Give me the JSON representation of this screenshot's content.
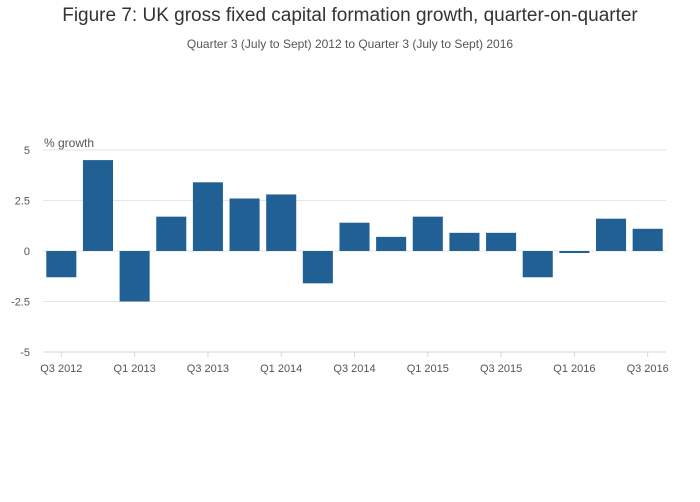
{
  "chart_data": {
    "type": "bar",
    "title": "Figure 7: UK gross fixed capital formation growth, quarter-on-quarter",
    "subtitle": "Quarter 3 (July to Sept) 2012 to Quarter 3 (July to Sept) 2016",
    "ylabel": "% growth",
    "xlabel": "",
    "ylim": [
      -5,
      5
    ],
    "yticks": [
      5,
      2.5,
      0,
      -2.5,
      -5
    ],
    "ytick_labels": [
      "5",
      "2.5",
      "0",
      "-2.5",
      "-5"
    ],
    "categories": [
      "Q3 2012",
      "Q4 2012",
      "Q1 2013",
      "Q2 2013",
      "Q3 2013",
      "Q4 2013",
      "Q1 2014",
      "Q2 2014",
      "Q3 2014",
      "Q4 2014",
      "Q1 2015",
      "Q2 2015",
      "Q3 2015",
      "Q4 2015",
      "Q1 2016",
      "Q2 2016",
      "Q3 2016"
    ],
    "xtick_labels": [
      "Q3 2012",
      "Q1 2013",
      "Q3 2013",
      "Q1 2014",
      "Q3 2014",
      "Q1 2015",
      "Q3 2015",
      "Q1 2016",
      "Q3 2016"
    ],
    "values": [
      -1.3,
      4.5,
      -2.5,
      1.7,
      3.4,
      2.6,
      2.8,
      -1.6,
      1.4,
      0.7,
      1.7,
      0.9,
      0.9,
      -1.3,
      -0.1,
      1.6,
      1.1
    ],
    "grid": true,
    "bar_color": "#206095",
    "grid_color": "#e6e6e6"
  }
}
